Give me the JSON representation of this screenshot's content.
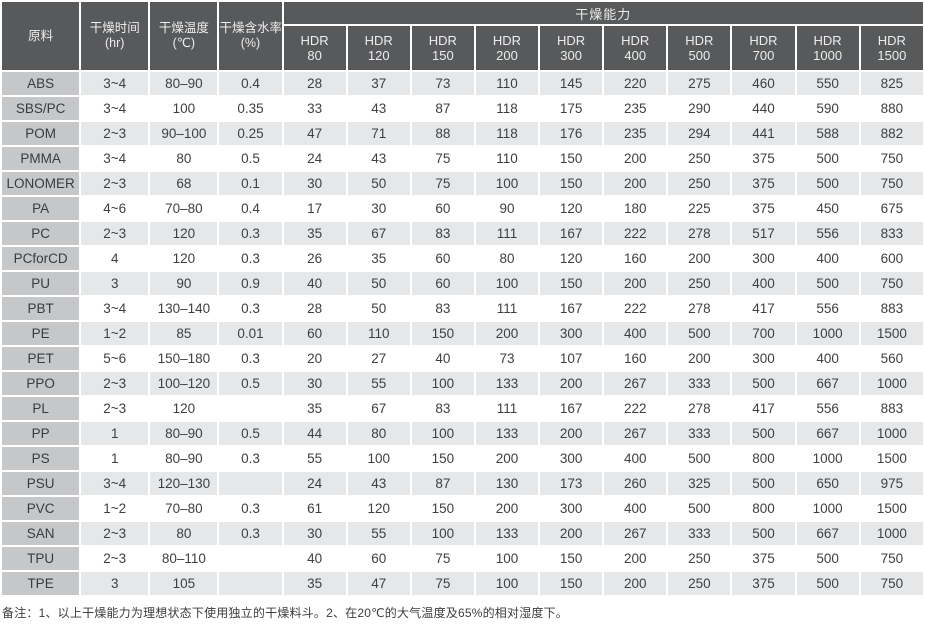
{
  "table": {
    "capability_header": "干燥能力",
    "left_columns": [
      {
        "label": "原料",
        "unit": ""
      },
      {
        "label": "干燥时间",
        "unit": "(hr)"
      },
      {
        "label": "干燥温度",
        "unit": "(℃)"
      },
      {
        "label": "干燥含水率",
        "unit": "(%)"
      }
    ],
    "hdr_columns": [
      {
        "name": "HDR",
        "size": "80"
      },
      {
        "name": "HDR",
        "size": "120"
      },
      {
        "name": "HDR",
        "size": "150"
      },
      {
        "name": "HDR",
        "size": "200"
      },
      {
        "name": "HDR",
        "size": "300"
      },
      {
        "name": "HDR",
        "size": "400"
      },
      {
        "name": "HDR",
        "size": "500"
      },
      {
        "name": "HDR",
        "size": "700"
      },
      {
        "name": "HDR",
        "size": "1000"
      },
      {
        "name": "HDR",
        "size": "1500"
      }
    ],
    "rows": [
      {
        "material": "ABS",
        "time": "3~4",
        "temp": "80–90",
        "moisture": "0.4",
        "capacities": [
          "28",
          "37",
          "73",
          "110",
          "145",
          "220",
          "275",
          "460",
          "550",
          "825"
        ]
      },
      {
        "material": "SBS/PC",
        "time": "3~4",
        "temp": "100",
        "moisture": "0.35",
        "capacities": [
          "33",
          "43",
          "87",
          "118",
          "175",
          "235",
          "290",
          "440",
          "590",
          "880"
        ]
      },
      {
        "material": "POM",
        "time": "2~3",
        "temp": "90–100",
        "moisture": "0.25",
        "capacities": [
          "47",
          "71",
          "88",
          "118",
          "176",
          "235",
          "294",
          "441",
          "588",
          "882"
        ]
      },
      {
        "material": "PMMA",
        "time": "3~4",
        "temp": "80",
        "moisture": "0.5",
        "capacities": [
          "24",
          "43",
          "75",
          "110",
          "150",
          "200",
          "250",
          "375",
          "500",
          "750"
        ]
      },
      {
        "material": "LONOMER",
        "time": "2~3",
        "temp": "68",
        "moisture": "0.1",
        "capacities": [
          "30",
          "50",
          "75",
          "100",
          "150",
          "200",
          "250",
          "375",
          "500",
          "750"
        ]
      },
      {
        "material": "PA",
        "time": "4~6",
        "temp": "70–80",
        "moisture": "0.4",
        "capacities": [
          "17",
          "30",
          "60",
          "90",
          "120",
          "180",
          "225",
          "375",
          "450",
          "675"
        ]
      },
      {
        "material": "PC",
        "time": "2~3",
        "temp": "120",
        "moisture": "0.3",
        "capacities": [
          "35",
          "67",
          "83",
          "111",
          "167",
          "222",
          "278",
          "517",
          "556",
          "833"
        ]
      },
      {
        "material": "PCforCD",
        "time": "4",
        "temp": "120",
        "moisture": "0.3",
        "capacities": [
          "26",
          "35",
          "60",
          "80",
          "120",
          "160",
          "200",
          "300",
          "400",
          "600"
        ]
      },
      {
        "material": "PU",
        "time": "3",
        "temp": "90",
        "moisture": "0.9",
        "capacities": [
          "40",
          "50",
          "60",
          "100",
          "150",
          "200",
          "250",
          "400",
          "500",
          "750"
        ]
      },
      {
        "material": "PBT",
        "time": "3~4",
        "temp": "130–140",
        "moisture": "0.3",
        "capacities": [
          "28",
          "50",
          "83",
          "111",
          "167",
          "222",
          "278",
          "417",
          "556",
          "883"
        ]
      },
      {
        "material": "PE",
        "time": "1~2",
        "temp": "85",
        "moisture": "0.01",
        "capacities": [
          "60",
          "110",
          "150",
          "200",
          "300",
          "400",
          "500",
          "700",
          "1000",
          "1500"
        ]
      },
      {
        "material": "PET",
        "time": "5~6",
        "temp": "150–180",
        "moisture": "0.3",
        "capacities": [
          "20",
          "27",
          "40",
          "73",
          "107",
          "160",
          "200",
          "300",
          "400",
          "560"
        ]
      },
      {
        "material": "PPO",
        "time": "2~3",
        "temp": "100–120",
        "moisture": "0.5",
        "capacities": [
          "30",
          "55",
          "100",
          "133",
          "200",
          "267",
          "333",
          "500",
          "667",
          "1000"
        ]
      },
      {
        "material": "PL",
        "time": "2~3",
        "temp": "120",
        "moisture": "",
        "capacities": [
          "35",
          "67",
          "83",
          "111",
          "167",
          "222",
          "278",
          "417",
          "556",
          "883"
        ]
      },
      {
        "material": "PP",
        "time": "1",
        "temp": "80–90",
        "moisture": "0.5",
        "capacities": [
          "44",
          "80",
          "100",
          "133",
          "200",
          "267",
          "333",
          "500",
          "667",
          "1000"
        ]
      },
      {
        "material": "PS",
        "time": "1",
        "temp": "80–90",
        "moisture": "0.3",
        "capacities": [
          "55",
          "100",
          "150",
          "200",
          "300",
          "400",
          "500",
          "800",
          "1000",
          "1500"
        ]
      },
      {
        "material": "PSU",
        "time": "3~4",
        "temp": "120–130",
        "moisture": "",
        "capacities": [
          "24",
          "43",
          "87",
          "130",
          "173",
          "260",
          "325",
          "500",
          "650",
          "975"
        ]
      },
      {
        "material": "PVC",
        "time": "1~2",
        "temp": "70–80",
        "moisture": "0.3",
        "capacities": [
          "61",
          "120",
          "150",
          "200",
          "300",
          "400",
          "500",
          "800",
          "1000",
          "1500"
        ]
      },
      {
        "material": "SAN",
        "time": "2~3",
        "temp": "80",
        "moisture": "0.3",
        "capacities": [
          "30",
          "55",
          "100",
          "133",
          "200",
          "267",
          "333",
          "500",
          "667",
          "1000"
        ]
      },
      {
        "material": "TPU",
        "time": "2~3",
        "temp": "80–110",
        "moisture": "",
        "capacities": [
          "40",
          "60",
          "75",
          "100",
          "150",
          "200",
          "250",
          "375",
          "500",
          "750"
        ]
      },
      {
        "material": "TPE",
        "time": "3",
        "temp": "105",
        "moisture": "",
        "capacities": [
          "35",
          "47",
          "75",
          "100",
          "150",
          "200",
          "250",
          "375",
          "500",
          "750"
        ]
      }
    ]
  },
  "footnote": "备注：1、以上干燥能力为理想状态下使用独立的干燥料斗。2、在20℃的大气温度及65%的相对湿度下。",
  "colors": {
    "header_bg": "#58595b",
    "header_text": "#ededed",
    "material_bg": "#c5c7c9",
    "stripe_bg": "#e5e7e9",
    "row_bg": "#ffffff",
    "text": "#3e3f41"
  }
}
